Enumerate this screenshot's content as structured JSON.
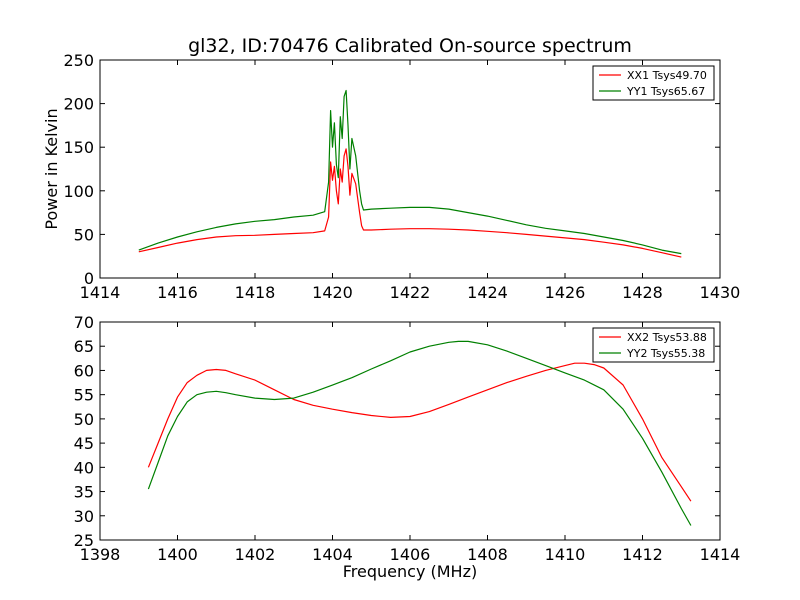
{
  "title": "gl32, ID:70476 Calibrated On-source spectrum",
  "chart_data": [
    {
      "type": "line",
      "title": "gl32, ID:70476 Calibrated On-source spectrum",
      "xlabel": "",
      "ylabel": "Power in Kelvin",
      "xlim": [
        1414,
        1430
      ],
      "ylim": [
        0,
        250
      ],
      "xticks": [
        1414,
        1416,
        1418,
        1420,
        1422,
        1424,
        1426,
        1428,
        1430
      ],
      "yticks": [
        0,
        50,
        100,
        150,
        200,
        250
      ],
      "grid": false,
      "legend_position": "top-right",
      "series": [
        {
          "name": "XX1 Tsys49.70",
          "color": "#ff0000",
          "x": [
            1415.0,
            1415.5,
            1416.0,
            1416.5,
            1417.0,
            1417.5,
            1418.0,
            1418.5,
            1419.0,
            1419.5,
            1419.8,
            1419.9,
            1419.95,
            1420.0,
            1420.05,
            1420.1,
            1420.15,
            1420.2,
            1420.25,
            1420.3,
            1420.35,
            1420.4,
            1420.45,
            1420.5,
            1420.6,
            1420.7,
            1420.75,
            1420.8,
            1421.0,
            1421.5,
            1422.0,
            1422.5,
            1423.0,
            1423.5,
            1424.0,
            1424.5,
            1425.0,
            1425.5,
            1426.0,
            1426.5,
            1427.0,
            1427.5,
            1428.0,
            1428.5,
            1429.0
          ],
          "y": [
            30,
            35,
            40,
            44,
            47,
            48.5,
            49,
            50,
            51,
            52,
            54,
            70,
            133,
            112,
            128,
            100,
            85,
            125,
            110,
            140,
            148,
            128,
            95,
            120,
            108,
            75,
            60,
            55,
            55,
            56,
            56.5,
            56.5,
            56,
            55,
            53.5,
            52,
            50,
            48,
            46,
            44,
            41,
            38,
            34,
            29,
            24
          ]
        },
        {
          "name": "YY1 Tsys65.67",
          "color": "#008000",
          "x": [
            1415.0,
            1415.5,
            1416.0,
            1416.5,
            1417.0,
            1417.5,
            1418.0,
            1418.5,
            1419.0,
            1419.5,
            1419.8,
            1419.9,
            1419.95,
            1420.0,
            1420.05,
            1420.1,
            1420.15,
            1420.2,
            1420.25,
            1420.3,
            1420.35,
            1420.4,
            1420.45,
            1420.5,
            1420.6,
            1420.7,
            1420.75,
            1420.8,
            1421.0,
            1421.5,
            1422.0,
            1422.5,
            1423.0,
            1423.5,
            1424.0,
            1424.5,
            1425.0,
            1425.5,
            1426.0,
            1426.5,
            1427.0,
            1427.5,
            1428.0,
            1428.5,
            1429.0
          ],
          "y": [
            32,
            40,
            47,
            53,
            58,
            62,
            65,
            67,
            70,
            72,
            76,
            110,
            192,
            150,
            178,
            130,
            115,
            185,
            160,
            208,
            215,
            175,
            125,
            160,
            140,
            100,
            85,
            78,
            79,
            80,
            81,
            81,
            79,
            75,
            71,
            66,
            61,
            57,
            54,
            51,
            47,
            43,
            38,
            32,
            28
          ]
        }
      ]
    },
    {
      "type": "line",
      "title": "",
      "xlabel": "Frequency (MHz)",
      "ylabel": "",
      "xlim": [
        1398,
        1414
      ],
      "ylim": [
        25,
        70
      ],
      "xticks": [
        1398,
        1400,
        1402,
        1404,
        1406,
        1408,
        1410,
        1412,
        1414
      ],
      "yticks": [
        25,
        30,
        35,
        40,
        45,
        50,
        55,
        60,
        65,
        70
      ],
      "grid": false,
      "legend_position": "top-right",
      "series": [
        {
          "name": "XX2 Tsys53.88",
          "color": "#ff0000",
          "x": [
            1399.25,
            1399.5,
            1399.75,
            1400.0,
            1400.25,
            1400.5,
            1400.75,
            1401.0,
            1401.25,
            1401.5,
            1402.0,
            1402.5,
            1403.0,
            1403.5,
            1404.0,
            1404.5,
            1405.0,
            1405.5,
            1406.0,
            1406.5,
            1407.0,
            1407.5,
            1408.0,
            1408.5,
            1409.0,
            1409.5,
            1410.0,
            1410.25,
            1410.5,
            1410.75,
            1411.0,
            1411.5,
            1412.0,
            1412.5,
            1413.0,
            1413.25
          ],
          "y": [
            40,
            45,
            50,
            54.5,
            57.5,
            59,
            60,
            60.2,
            60,
            59.3,
            58,
            56,
            54,
            52.8,
            52,
            51.3,
            50.7,
            50.3,
            50.5,
            51.5,
            53,
            54.5,
            56,
            57.5,
            58.8,
            60,
            61,
            61.5,
            61.5,
            61.2,
            60.5,
            57,
            50,
            42,
            36,
            33
          ]
        },
        {
          "name": "YY2 Tsys55.38",
          "color": "#008000",
          "x": [
            1399.25,
            1399.5,
            1399.75,
            1400.0,
            1400.25,
            1400.5,
            1400.75,
            1401.0,
            1401.25,
            1401.5,
            1402.0,
            1402.5,
            1403.0,
            1403.5,
            1404.0,
            1404.5,
            1405.0,
            1405.5,
            1406.0,
            1406.5,
            1407.0,
            1407.25,
            1407.5,
            1408.0,
            1408.5,
            1409.0,
            1409.5,
            1410.0,
            1410.5,
            1411.0,
            1411.5,
            1412.0,
            1412.5,
            1413.0,
            1413.25
          ],
          "y": [
            35.5,
            41,
            46.5,
            50.5,
            53.5,
            55,
            55.5,
            55.7,
            55.4,
            55,
            54.3,
            54,
            54.3,
            55.5,
            57,
            58.5,
            60.3,
            62,
            63.8,
            65,
            65.8,
            66,
            66,
            65.3,
            64,
            62.5,
            61,
            59.5,
            58,
            56,
            52,
            46,
            39,
            31.5,
            28
          ]
        }
      ]
    }
  ]
}
